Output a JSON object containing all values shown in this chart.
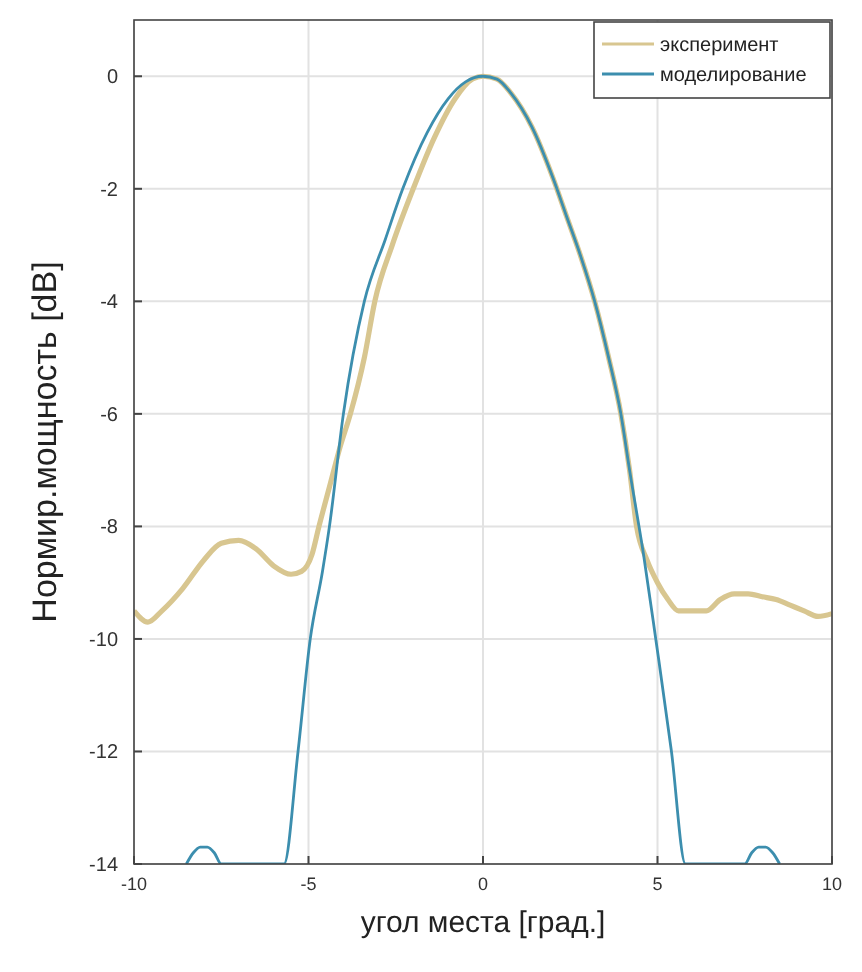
{
  "chart_data": {
    "type": "line",
    "xlabel": "угол места [град.]",
    "ylabel": "Нормир.мощность [dB]",
    "xlim": [
      -10,
      10
    ],
    "ylim": [
      -14,
      1
    ],
    "xticks": [
      -10,
      -5,
      0,
      5,
      10
    ],
    "yticks": [
      0,
      -2,
      -4,
      -6,
      -8,
      -10,
      -12,
      -14
    ],
    "grid": true,
    "legend": "top right",
    "marker": "none",
    "line_style": "solid",
    "series": [
      {
        "name": "эксперимент",
        "color": "#d8c690",
        "x": [
          -10,
          -9.6,
          -9.2,
          -8.6,
          -8,
          -7.5,
          -7,
          -6.5,
          -6,
          -5.5,
          -5.2,
          -4.9,
          -4.7,
          -4.4,
          -4.1,
          -3.8,
          -3.4,
          -3.1,
          -2.6,
          -2,
          -1.4,
          -0.8,
          -0.3,
          0,
          0.4,
          0.8,
          1.4,
          2,
          2.4,
          2.8,
          3.2,
          3.6,
          3.95,
          4.2,
          4.4,
          4.7,
          5,
          5.3,
          5.6,
          6,
          6.4,
          6.8,
          7.2,
          7.6,
          8,
          8.4,
          8.8,
          9.2,
          9.6,
          10
        ],
        "values": [
          -9.5,
          -9.7,
          -9.5,
          -9.1,
          -8.6,
          -8.3,
          -8.25,
          -8.4,
          -8.7,
          -8.85,
          -8.8,
          -8.5,
          -8,
          -7.3,
          -6.6,
          -6,
          -5,
          -4,
          -3,
          -2,
          -1.1,
          -0.4,
          -0.05,
          0,
          -0.05,
          -0.3,
          -0.9,
          -1.8,
          -2.5,
          -3.2,
          -4,
          -5,
          -6,
          -7,
          -8,
          -8.6,
          -9,
          -9.3,
          -9.5,
          -9.5,
          -9.5,
          -9.3,
          -9.2,
          -9.2,
          -9.25,
          -9.3,
          -9.4,
          -9.5,
          -9.6,
          -9.55
        ]
      },
      {
        "name": "моделирование",
        "color": "#3c8eae",
        "x": [
          -8.5,
          -8.3,
          -8.1,
          -7.9,
          -7.7,
          -7.5,
          -5.7,
          -5.3,
          -4.95,
          -4.6,
          -4.4,
          -4,
          -3.4,
          -2.8,
          -2.3,
          -1.6,
          -1,
          -0.5,
          0,
          0.4,
          0.8,
          1.4,
          2,
          2.4,
          2.8,
          3.2,
          3.6,
          3.95,
          4.2,
          4.6,
          4.95,
          5.4,
          5.8,
          7.5,
          7.7,
          7.9,
          8.1,
          8.3,
          8.5
        ],
        "values": [
          -14,
          -13.8,
          -13.7,
          -13.7,
          -13.8,
          -14,
          -14,
          -12,
          -10,
          -8.8,
          -8,
          -6,
          -4,
          -2.9,
          -2,
          -1,
          -0.4,
          -0.1,
          0,
          -0.05,
          -0.3,
          -0.9,
          -1.8,
          -2.5,
          -3.2,
          -4,
          -5,
          -6,
          -7,
          -8.5,
          -10,
          -12,
          -14,
          -14,
          -13.8,
          -13.7,
          -13.7,
          -13.8,
          -14
        ]
      }
    ]
  }
}
